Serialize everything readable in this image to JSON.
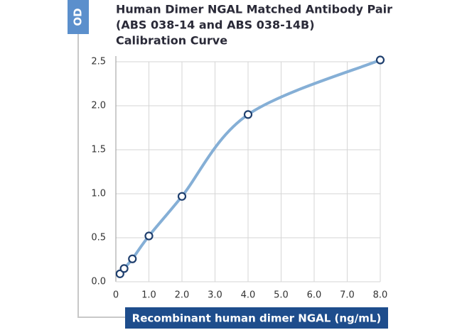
{
  "chart_data": {
    "type": "line",
    "title": [
      "Human Dimer NGAL Matched Antibody Pair",
      "(ABS 038-14 and ABS 038-14B)",
      "Calibration Curve"
    ],
    "ylabel": "OD",
    "xlabel": "Recombinant human dimer NGAL (ng/mL)",
    "x": [
      0.125,
      0.25,
      0.5,
      1,
      2,
      4,
      8
    ],
    "values": [
      0.09,
      0.15,
      0.26,
      0.52,
      0.97,
      1.9,
      2.52
    ],
    "color": "#85afd6",
    "marker_color": "#1f3f6e",
    "smooth": true,
    "grid": true,
    "xlim": [
      0,
      8
    ],
    "ylim": [
      0,
      2.5
    ],
    "xticks": [
      0,
      {
        "value": 1,
        "label": "1.0"
      },
      {
        "value": 2,
        "label": "2.0"
      },
      {
        "value": 3,
        "label": "3.0"
      },
      {
        "value": 4,
        "label": "4.0"
      },
      {
        "value": 5,
        "label": "5.0"
      },
      {
        "value": 6,
        "label": "6.0"
      },
      {
        "value": 7,
        "label": "7.0"
      },
      {
        "value": 8,
        "label": "8.0"
      }
    ],
    "yticks": [
      {
        "value": 0,
        "label": "0.0"
      },
      {
        "value": 0.5,
        "label": "0.5"
      },
      {
        "value": 1,
        "label": "1.0"
      },
      {
        "value": 1.5,
        "label": "1.5"
      },
      {
        "value": 2,
        "label": "2.0"
      },
      {
        "value": 2.5,
        "label": "2.5"
      }
    ]
  }
}
